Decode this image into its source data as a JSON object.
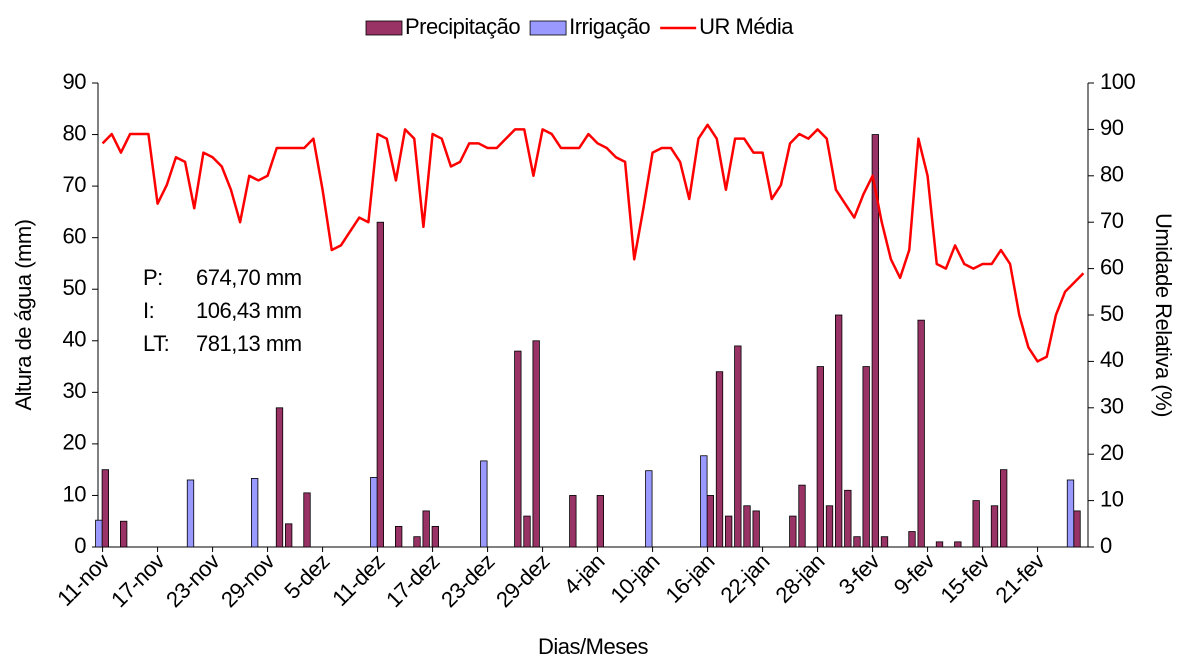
{
  "chart_data": {
    "type": "bar-line",
    "x_label": "Dias/Meses",
    "y_label": "Altura de água (mm)",
    "y2_label": "Umidade Relativa (%)",
    "annotations": [
      {
        "label": "P:",
        "text": "674,70 mm"
      },
      {
        "label": "I:",
        "text": "106,43 mm"
      },
      {
        "label": "LT:",
        "text": "781,13 mm"
      }
    ],
    "categories": [
      "11-nov",
      null,
      null,
      null,
      null,
      null,
      "17-nov",
      null,
      null,
      null,
      null,
      null,
      "23-nov",
      null,
      null,
      null,
      null,
      null,
      "29-nov",
      null,
      null,
      null,
      null,
      null,
      "5-dez",
      null,
      null,
      null,
      null,
      null,
      "11-dez",
      null,
      null,
      null,
      null,
      null,
      "17-dez",
      null,
      null,
      null,
      null,
      null,
      "23-dez",
      null,
      null,
      null,
      null,
      null,
      "29-dez",
      null,
      null,
      null,
      null,
      null,
      "4-jan",
      null,
      null,
      null,
      null,
      null,
      "10-jan",
      null,
      null,
      null,
      null,
      null,
      "16-jan",
      null,
      null,
      null,
      null,
      null,
      "22-jan",
      null,
      null,
      null,
      null,
      null,
      "28-jan",
      null,
      null,
      null,
      null,
      null,
      "3-fev",
      null,
      null,
      null,
      null,
      null,
      "9-fev",
      null,
      null,
      null,
      null,
      null,
      "15-fev",
      null,
      null,
      null,
      null,
      null,
      "21-fev",
      null,
      null,
      null,
      null,
      null
    ],
    "series": [
      {
        "name": "Precipitação",
        "kind": "bar",
        "color": "#993366",
        "values": [
          15,
          0,
          5,
          0,
          0,
          0,
          0,
          0,
          0,
          0,
          0,
          0,
          0,
          0,
          0,
          0,
          0,
          0,
          0,
          27,
          4.5,
          0,
          10.5,
          0,
          0,
          0,
          0,
          0,
          0,
          0,
          63,
          0,
          4,
          0,
          2,
          7,
          4,
          0,
          0,
          0,
          0,
          0,
          0,
          0,
          0,
          38,
          6,
          40,
          0,
          0,
          0,
          10,
          0,
          0,
          10,
          0,
          0,
          0,
          0,
          0,
          0,
          0,
          0,
          0,
          0,
          0,
          10,
          34,
          6,
          39,
          8,
          7,
          0,
          0,
          0,
          6,
          12,
          0,
          35,
          8,
          45,
          11,
          2,
          35,
          80,
          2,
          0,
          0,
          3,
          44,
          0,
          1,
          0,
          1,
          0,
          9,
          0,
          8,
          15,
          0,
          0,
          0,
          0,
          0,
          0,
          0,
          7,
          0
        ]
      },
      {
        "name": "Irrigação",
        "kind": "bar",
        "color": "#9999ff",
        "values": [
          5.2,
          0,
          0,
          0,
          0,
          0,
          0,
          0,
          0,
          0,
          13,
          0,
          0,
          0,
          0,
          0,
          0,
          13.3,
          0,
          0,
          0,
          0,
          0,
          0,
          0,
          0,
          0,
          0,
          0,
          0,
          13.5,
          0,
          0,
          0,
          0,
          0,
          0,
          0,
          0,
          0,
          0,
          0,
          16.7,
          0,
          0,
          0,
          0,
          0,
          0,
          0,
          0,
          0,
          0,
          0,
          0,
          0,
          0,
          0,
          0,
          0,
          14.8,
          0,
          0,
          0,
          0,
          0,
          17.7,
          0,
          0,
          0,
          0,
          0,
          0,
          0,
          0,
          0,
          0,
          0,
          0,
          0,
          0,
          0,
          0,
          0,
          0,
          0,
          0,
          0,
          0,
          0,
          0,
          0,
          0,
          0,
          0,
          0,
          0,
          0,
          0,
          0,
          0,
          0,
          0,
          0,
          0,
          0,
          13,
          0
        ]
      },
      {
        "name": "UR Média",
        "kind": "line",
        "axis": "y2",
        "color": "#ff0000",
        "values": [
          87,
          89,
          85,
          89,
          89,
          89,
          74,
          78,
          84,
          83,
          73,
          85,
          84,
          82,
          77,
          70,
          80,
          79,
          80,
          86,
          86,
          86,
          86,
          88,
          77,
          64,
          65,
          68,
          71,
          70,
          89,
          88,
          79,
          90,
          88,
          69,
          89,
          88,
          82,
          83,
          87,
          87,
          86,
          86,
          88,
          90,
          90,
          80,
          90,
          89,
          86,
          86,
          86,
          89,
          87,
          86,
          84,
          83,
          62,
          73,
          85,
          86,
          86,
          83,
          75,
          88,
          91,
          88,
          77,
          88,
          88,
          85,
          85,
          75,
          78,
          87,
          89,
          88,
          90,
          88,
          77,
          74,
          71,
          76,
          80,
          70,
          62,
          58,
          64,
          88,
          80,
          61,
          60,
          65,
          61,
          60,
          61,
          61,
          64,
          61,
          50,
          43,
          40,
          41,
          50,
          55,
          57,
          59
        ]
      }
    ],
    "ylim": [
      0,
      90
    ],
    "yticks": [
      0,
      10,
      20,
      30,
      40,
      50,
      60,
      70,
      80,
      90
    ],
    "y2lim": [
      0,
      100
    ],
    "y2ticks": [
      0,
      10,
      20,
      30,
      40,
      50,
      60,
      70,
      80,
      90,
      100
    ],
    "legend": "top"
  }
}
